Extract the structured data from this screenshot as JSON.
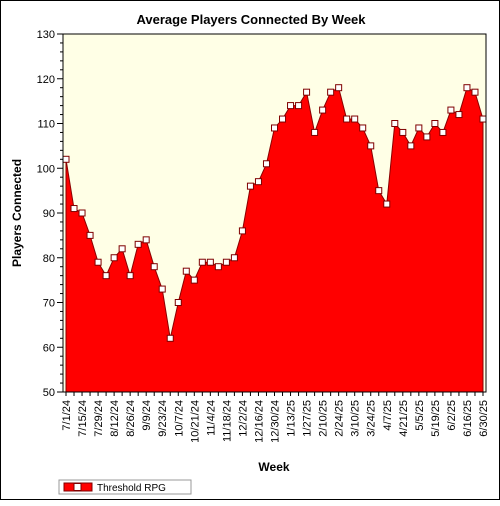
{
  "chart_data": {
    "type": "area",
    "title": "Average Players Connected By Week",
    "xlabel": "Week",
    "ylabel": "Players Connected",
    "ylim": [
      50,
      130
    ],
    "yticks": [
      50,
      60,
      70,
      80,
      90,
      100,
      110,
      120,
      130
    ],
    "grid": false,
    "legend_position": "bottom-left",
    "colors": {
      "fill": "#ff0000",
      "line": "#8b0000",
      "plot_bg": "#ffffe6",
      "marker_fill": "#ffffff",
      "marker_stroke": "#7f0000"
    },
    "x_tick_labels": [
      "7/1/24",
      "7/15/24",
      "7/29/24",
      "8/12/24",
      "8/26/24",
      "9/9/24",
      "9/23/24",
      "10/7/24",
      "10/21/24",
      "11/4/24",
      "11/18/24",
      "12/2/24",
      "12/16/24",
      "12/30/24",
      "1/13/25",
      "1/27/25",
      "2/10/25",
      "2/24/25",
      "3/10/25",
      "3/24/25",
      "4/7/25",
      "4/21/25",
      "5/5/25",
      "5/19/25",
      "6/2/25",
      "6/16/25",
      "6/30/25"
    ],
    "x": [
      "7/1/24",
      "7/8/24",
      "7/15/24",
      "7/22/24",
      "7/29/24",
      "8/5/24",
      "8/12/24",
      "8/19/24",
      "8/26/24",
      "9/2/24",
      "9/9/24",
      "9/16/24",
      "9/23/24",
      "9/30/24",
      "10/7/24",
      "10/14/24",
      "10/21/24",
      "10/28/24",
      "11/4/24",
      "11/11/24",
      "11/18/24",
      "11/25/24",
      "12/2/24",
      "12/9/24",
      "12/16/24",
      "12/23/24",
      "12/30/24",
      "1/6/25",
      "1/13/25",
      "1/20/25",
      "1/27/25",
      "2/3/25",
      "2/10/25",
      "2/17/25",
      "2/24/25",
      "3/3/25",
      "3/10/25",
      "3/17/25",
      "3/24/25",
      "3/31/25",
      "4/7/25",
      "4/14/25",
      "4/21/25",
      "4/28/25",
      "5/5/25",
      "5/12/25",
      "5/19/25",
      "5/26/25",
      "6/2/25",
      "6/9/25",
      "6/16/25",
      "6/23/25",
      "6/30/25"
    ],
    "series": [
      {
        "name": "Threshold RPG",
        "values": [
          102,
          91,
          90,
          85,
          79,
          76,
          80,
          82,
          76,
          83,
          84,
          78,
          73,
          62,
          70,
          77,
          75,
          79,
          79,
          78,
          79,
          80,
          86,
          96,
          97,
          101,
          109,
          111,
          114,
          114,
          117,
          108,
          113,
          117,
          118,
          111,
          111,
          109,
          105,
          95,
          92,
          110,
          108,
          105,
          109,
          107,
          110,
          108,
          113,
          112,
          118,
          117,
          111
        ]
      }
    ]
  }
}
